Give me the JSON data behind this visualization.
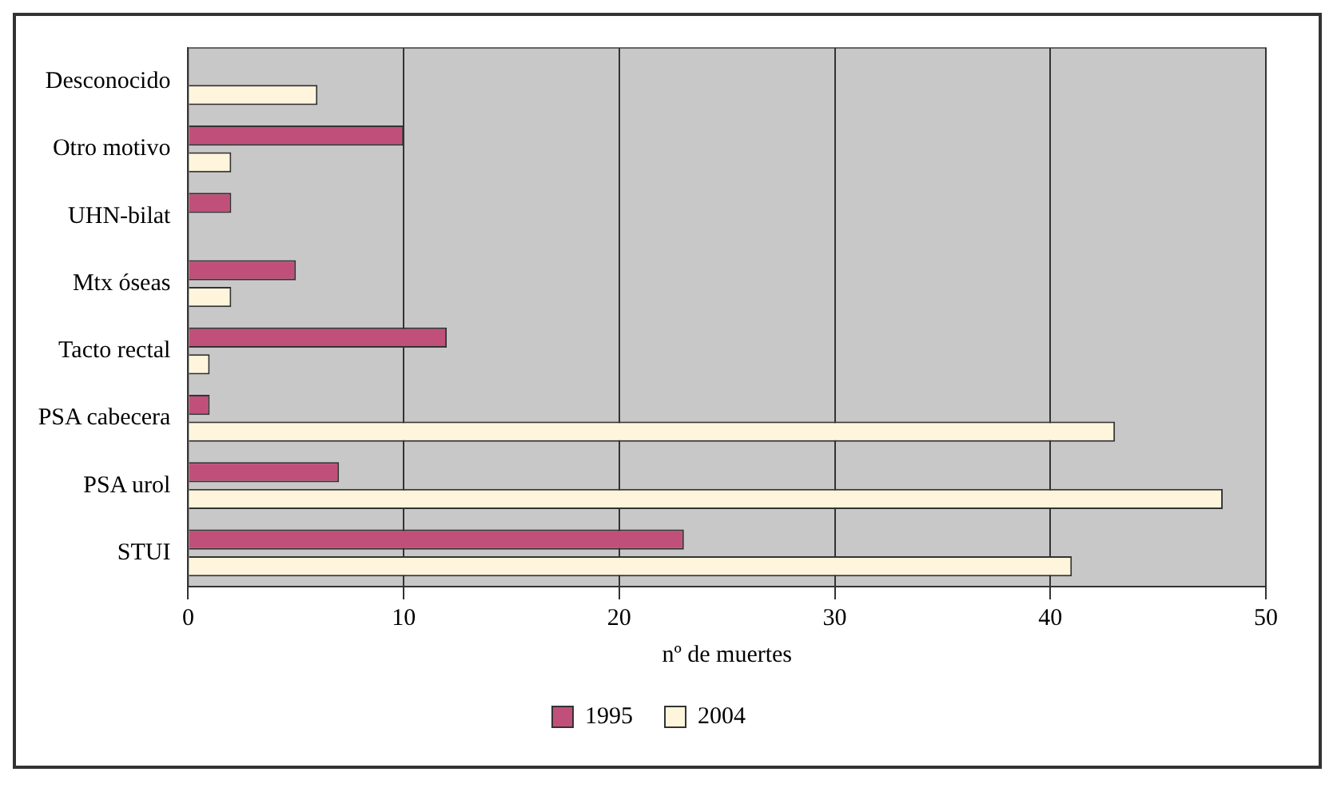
{
  "chart_data": {
    "type": "bar",
    "orientation": "horizontal",
    "xlabel": "nº de muertes",
    "categories": [
      "Desconocido",
      "Otro motivo",
      "UHN-bilat",
      "Mtx óseas",
      "Tacto rectal",
      "PSA cabecera",
      "PSA urol",
      "STUI"
    ],
    "series": [
      {
        "name": "1995",
        "color": "#c0507a",
        "values": [
          0,
          10,
          2,
          5,
          12,
          1,
          7,
          23
        ]
      },
      {
        "name": "2004",
        "color": "#fff5dc",
        "values": [
          6,
          2,
          0,
          2,
          1,
          43,
          48,
          41
        ]
      }
    ],
    "xlim": [
      0,
      50
    ],
    "xticks": [
      0,
      10,
      20,
      30,
      40,
      50
    ],
    "grid": "x",
    "legend": "bottom"
  }
}
